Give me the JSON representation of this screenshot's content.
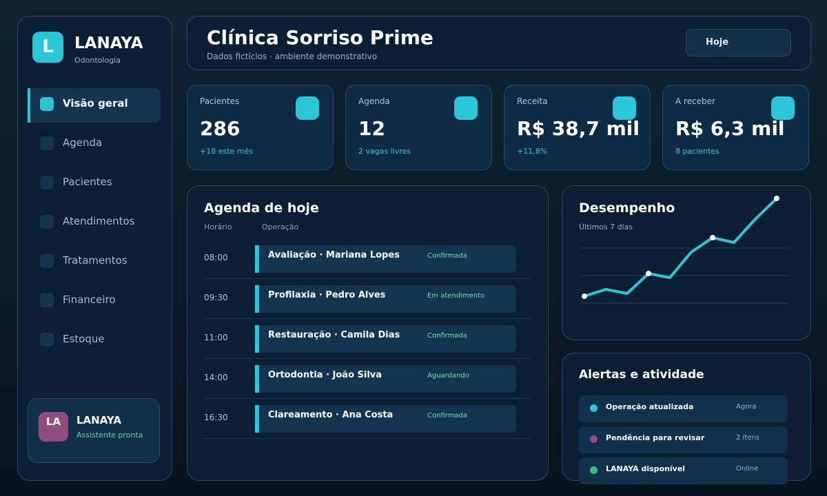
{
  "brand": {
    "initial": "L",
    "name": "LANAYA",
    "subtitle": "Odontologia"
  },
  "nav": [
    "Visão geral",
    "Agenda",
    "Pacientes",
    "Atendimentos",
    "Tratamentos",
    "Financeiro",
    "Estoque"
  ],
  "assistant": {
    "initials": "LA",
    "name": "LANAYA",
    "status": "Assistente pronta"
  },
  "header": {
    "title": "Clínica Sorriso Prime",
    "subtitle": "Dados fictícios · ambiente demonstrativo",
    "button": "Hoje"
  },
  "kpis": [
    {
      "label": "Pacientes",
      "value": "286",
      "note": "+18 este mês"
    },
    {
      "label": "Agenda",
      "value": "12",
      "note": "2 vagas livres"
    },
    {
      "label": "Receita",
      "value": "R$ 38,7 mil",
      "note": "+11,8%"
    },
    {
      "label": "A receber",
      "value": "R$ 6,3 mil",
      "note": "8 pacientes"
    }
  ],
  "agenda": {
    "title": "Agenda de hoje",
    "columns": [
      "Horário",
      "Operação"
    ],
    "rows": [
      {
        "time": "08:00",
        "name": "Avaliação · Mariana Lopes",
        "status": "Confirmada"
      },
      {
        "time": "09:30",
        "name": "Profilaxia · Pedro Alves",
        "status": "Em atendimento"
      },
      {
        "time": "11:00",
        "name": "Restauração · Camila Dias",
        "status": "Confirmada"
      },
      {
        "time": "14:00",
        "name": "Ortodontia · João Silva",
        "status": "Aguardando"
      },
      {
        "time": "16:30",
        "name": "Clareamento · Ana Costa",
        "status": "Confirmada"
      }
    ]
  },
  "performance": {
    "title": "Desempenho",
    "subtitle": "Últimos 7 dias",
    "color": "#29c7d9",
    "values": [
      50,
      60,
      54,
      83,
      77,
      114,
      135,
      128,
      162,
      192
    ]
  },
  "alerts": {
    "title": "Alertas e atividade",
    "items": [
      {
        "label": "Operação atualizada",
        "meta": "Agora",
        "color": "#29c7d9"
      },
      {
        "label": "Pendência para revisar",
        "meta": "2 itens",
        "color": "#8e4f7e"
      },
      {
        "label": "LANAYA disponível",
        "meta": "Online",
        "color": "#2fbf7f"
      }
    ]
  }
}
